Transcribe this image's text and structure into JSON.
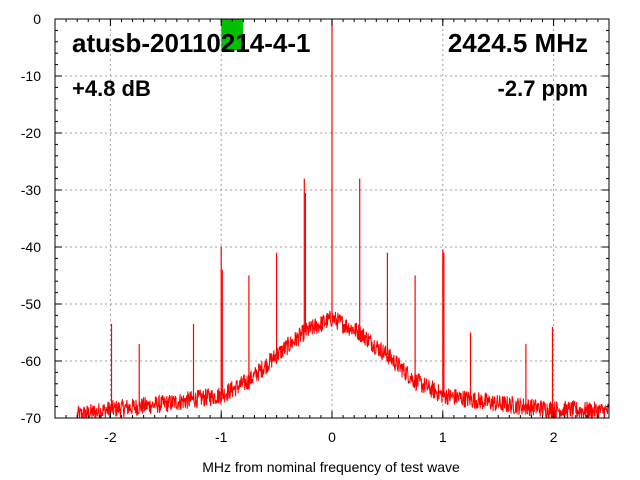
{
  "chart_data": {
    "type": "line",
    "title_left": "atusb-20110214-4-1",
    "title_right": "2424.5 MHz",
    "subtitle_left": "+4.8 dB",
    "subtitle_right": "-2.7 ppm",
    "xlabel": "MHz from nominal frequency of test wave",
    "ylabel": "",
    "xlim": [
      -2.5,
      2.5
    ],
    "ylim": [
      -70,
      0
    ],
    "x_ticks": [
      -2,
      -1,
      0,
      1,
      2
    ],
    "y_ticks": [
      0,
      -10,
      -20,
      -30,
      -40,
      -50,
      -60,
      -70
    ],
    "grid": true,
    "series_color": "#ff0000",
    "marker_color": "#00c000",
    "noise_floor": [
      {
        "x": -2.3,
        "y": -69.5
      },
      {
        "x": -2.0,
        "y": -68.5
      },
      {
        "x": -1.5,
        "y": -67.5
      },
      {
        "x": -1.0,
        "y": -66
      },
      {
        "x": -0.75,
        "y": -63.5
      },
      {
        "x": -0.5,
        "y": -59
      },
      {
        "x": -0.25,
        "y": -55
      },
      {
        "x": 0.0,
        "y": -52.5
      },
      {
        "x": 0.25,
        "y": -55
      },
      {
        "x": 0.5,
        "y": -59
      },
      {
        "x": 0.75,
        "y": -63.5
      },
      {
        "x": 1.0,
        "y": -66
      },
      {
        "x": 1.5,
        "y": -67.5
      },
      {
        "x": 2.0,
        "y": -68.5
      },
      {
        "x": 2.5,
        "y": -68.8
      }
    ],
    "spurs": [
      {
        "x": -1.99,
        "y": -53.5
      },
      {
        "x": -1.74,
        "y": -57
      },
      {
        "x": -1.25,
        "y": -53.5
      },
      {
        "x": -1.0,
        "y": -40
      },
      {
        "x": -0.99,
        "y": -44
      },
      {
        "x": -0.75,
        "y": -45
      },
      {
        "x": -0.5,
        "y": -41
      },
      {
        "x": -0.25,
        "y": -28
      },
      {
        "x": -0.24,
        "y": -30.5
      },
      {
        "x": 0.0,
        "y": 0
      },
      {
        "x": 0.25,
        "y": -28
      },
      {
        "x": 0.5,
        "y": -41
      },
      {
        "x": 0.75,
        "y": -45
      },
      {
        "x": 1.0,
        "y": -40.5
      },
      {
        "x": 1.01,
        "y": -41
      },
      {
        "x": 1.25,
        "y": -55
      },
      {
        "x": 1.75,
        "y": -57
      },
      {
        "x": 1.99,
        "y": -54
      }
    ],
    "marker": {
      "x": -0.9,
      "y_top": 0,
      "y_bottom": -5
    }
  }
}
